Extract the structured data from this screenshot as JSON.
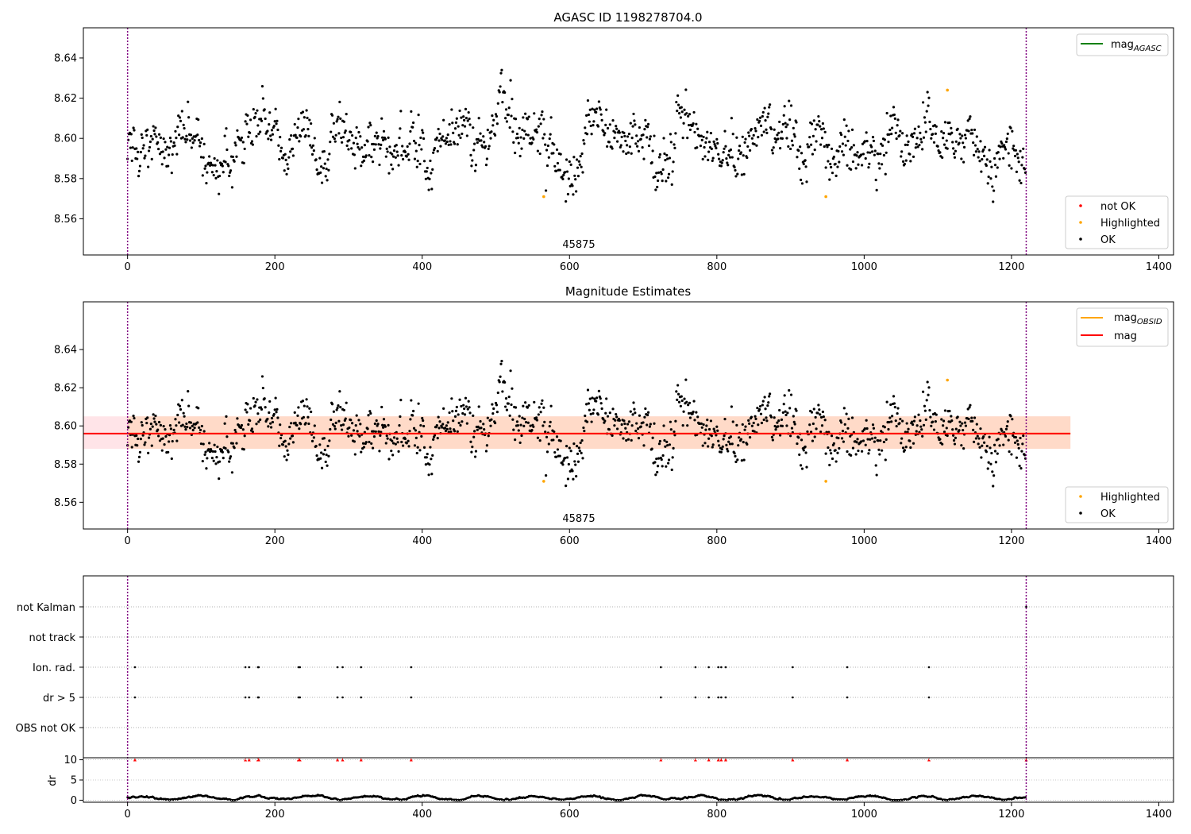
{
  "figure": {
    "panel1_title": "AGASC ID 1198278704.0",
    "panel2_title": "Magnitude Estimates",
    "obsid_label": "45875"
  },
  "colors": {
    "ok": "#000000",
    "highlighted": "#ffa500",
    "not_ok": "#ff0000",
    "agasc_line": "#008000",
    "obsid_line": "#ffa500",
    "mag_line": "#ff0000",
    "band_obsid": "#ffdac8",
    "band_mag": "#ffe4e8",
    "boundary": "#800080"
  },
  "legends": {
    "panel1_line": {
      "text": "mag",
      "sub": "AGASC"
    },
    "panel1_points": [
      "not OK",
      "Highlighted",
      "OK"
    ],
    "panel2_lines": [
      {
        "text": "mag",
        "sub": "OBSID"
      },
      {
        "text": "mag",
        "sub": ""
      }
    ],
    "panel2_points": [
      "Highlighted",
      "OK"
    ]
  },
  "chart_data": [
    {
      "type": "scatter",
      "title": "AGASC ID 1198278704.0",
      "xlim": [
        -60,
        1420
      ],
      "ylim": [
        8.542,
        8.655
      ],
      "xticks": [
        0,
        200,
        400,
        600,
        800,
        1000,
        1200,
        1400
      ],
      "yticks": [
        8.56,
        8.58,
        8.6,
        8.62,
        8.64
      ],
      "obsid_boundaries": [
        0,
        1220
      ],
      "obsid": "45875",
      "series": [
        {
          "name": "OK",
          "n_points": 1220,
          "mean": 8.596,
          "std": 0.0085,
          "x_range": [
            0,
            1220
          ]
        },
        {
          "name": "Highlighted",
          "points": [
            [
              565,
              8.571
            ],
            [
              948,
              8.571
            ],
            [
              1113,
              8.624
            ]
          ]
        },
        {
          "name": "not OK",
          "points": []
        }
      ],
      "legend": [
        "upper right",
        "lower right"
      ]
    },
    {
      "type": "scatter",
      "title": "Magnitude Estimates",
      "xlim": [
        -60,
        1420
      ],
      "ylim": [
        8.546,
        8.665
      ],
      "xticks": [
        0,
        200,
        400,
        600,
        800,
        1000,
        1200,
        1400
      ],
      "yticks": [
        8.56,
        8.58,
        8.6,
        8.62,
        8.64
      ],
      "mag": 8.596,
      "mag_band": [
        8.588,
        8.605
      ],
      "mag_obsid": 8.596,
      "mag_obsid_band": [
        8.588,
        8.605
      ],
      "obsid_band_x": [
        0,
        1280
      ],
      "obsid": "45875",
      "legend": [
        "upper right",
        "lower right"
      ]
    },
    {
      "type": "scatter",
      "title": "",
      "xlim": [
        -60,
        1420
      ],
      "xticks": [
        0,
        200,
        400,
        600,
        800,
        1000,
        1200,
        1400
      ],
      "flag_categories": [
        "not Kalman",
        "not track",
        "Ion. rad.",
        "dr > 5",
        "OBS not OK"
      ],
      "flag_points": {
        "not Kalman": [
          1220
        ],
        "not track": [],
        "Ion. rad.": [
          10,
          160,
          165,
          177,
          178,
          232,
          234,
          285,
          292,
          317,
          385,
          724,
          771,
          789,
          802,
          806,
          812,
          903,
          977,
          1088
        ],
        "dr > 5": [
          10,
          160,
          165,
          177,
          178,
          232,
          234,
          285,
          292,
          317,
          385,
          724,
          771,
          789,
          802,
          806,
          812,
          903,
          977,
          1088
        ],
        "OBS not OK": []
      },
      "dr": {
        "ylabel": "dr",
        "yticks": [
          0,
          5,
          10
        ],
        "ylim": [
          -0.5,
          10.5
        ],
        "clip_value": 10,
        "clipped_x": [
          10,
          160,
          165,
          177,
          178,
          232,
          234,
          285,
          292,
          317,
          385,
          724,
          771,
          789,
          802,
          806,
          812,
          903,
          977,
          1088,
          1220
        ],
        "typical_range": [
          0,
          1.3
        ]
      }
    }
  ]
}
